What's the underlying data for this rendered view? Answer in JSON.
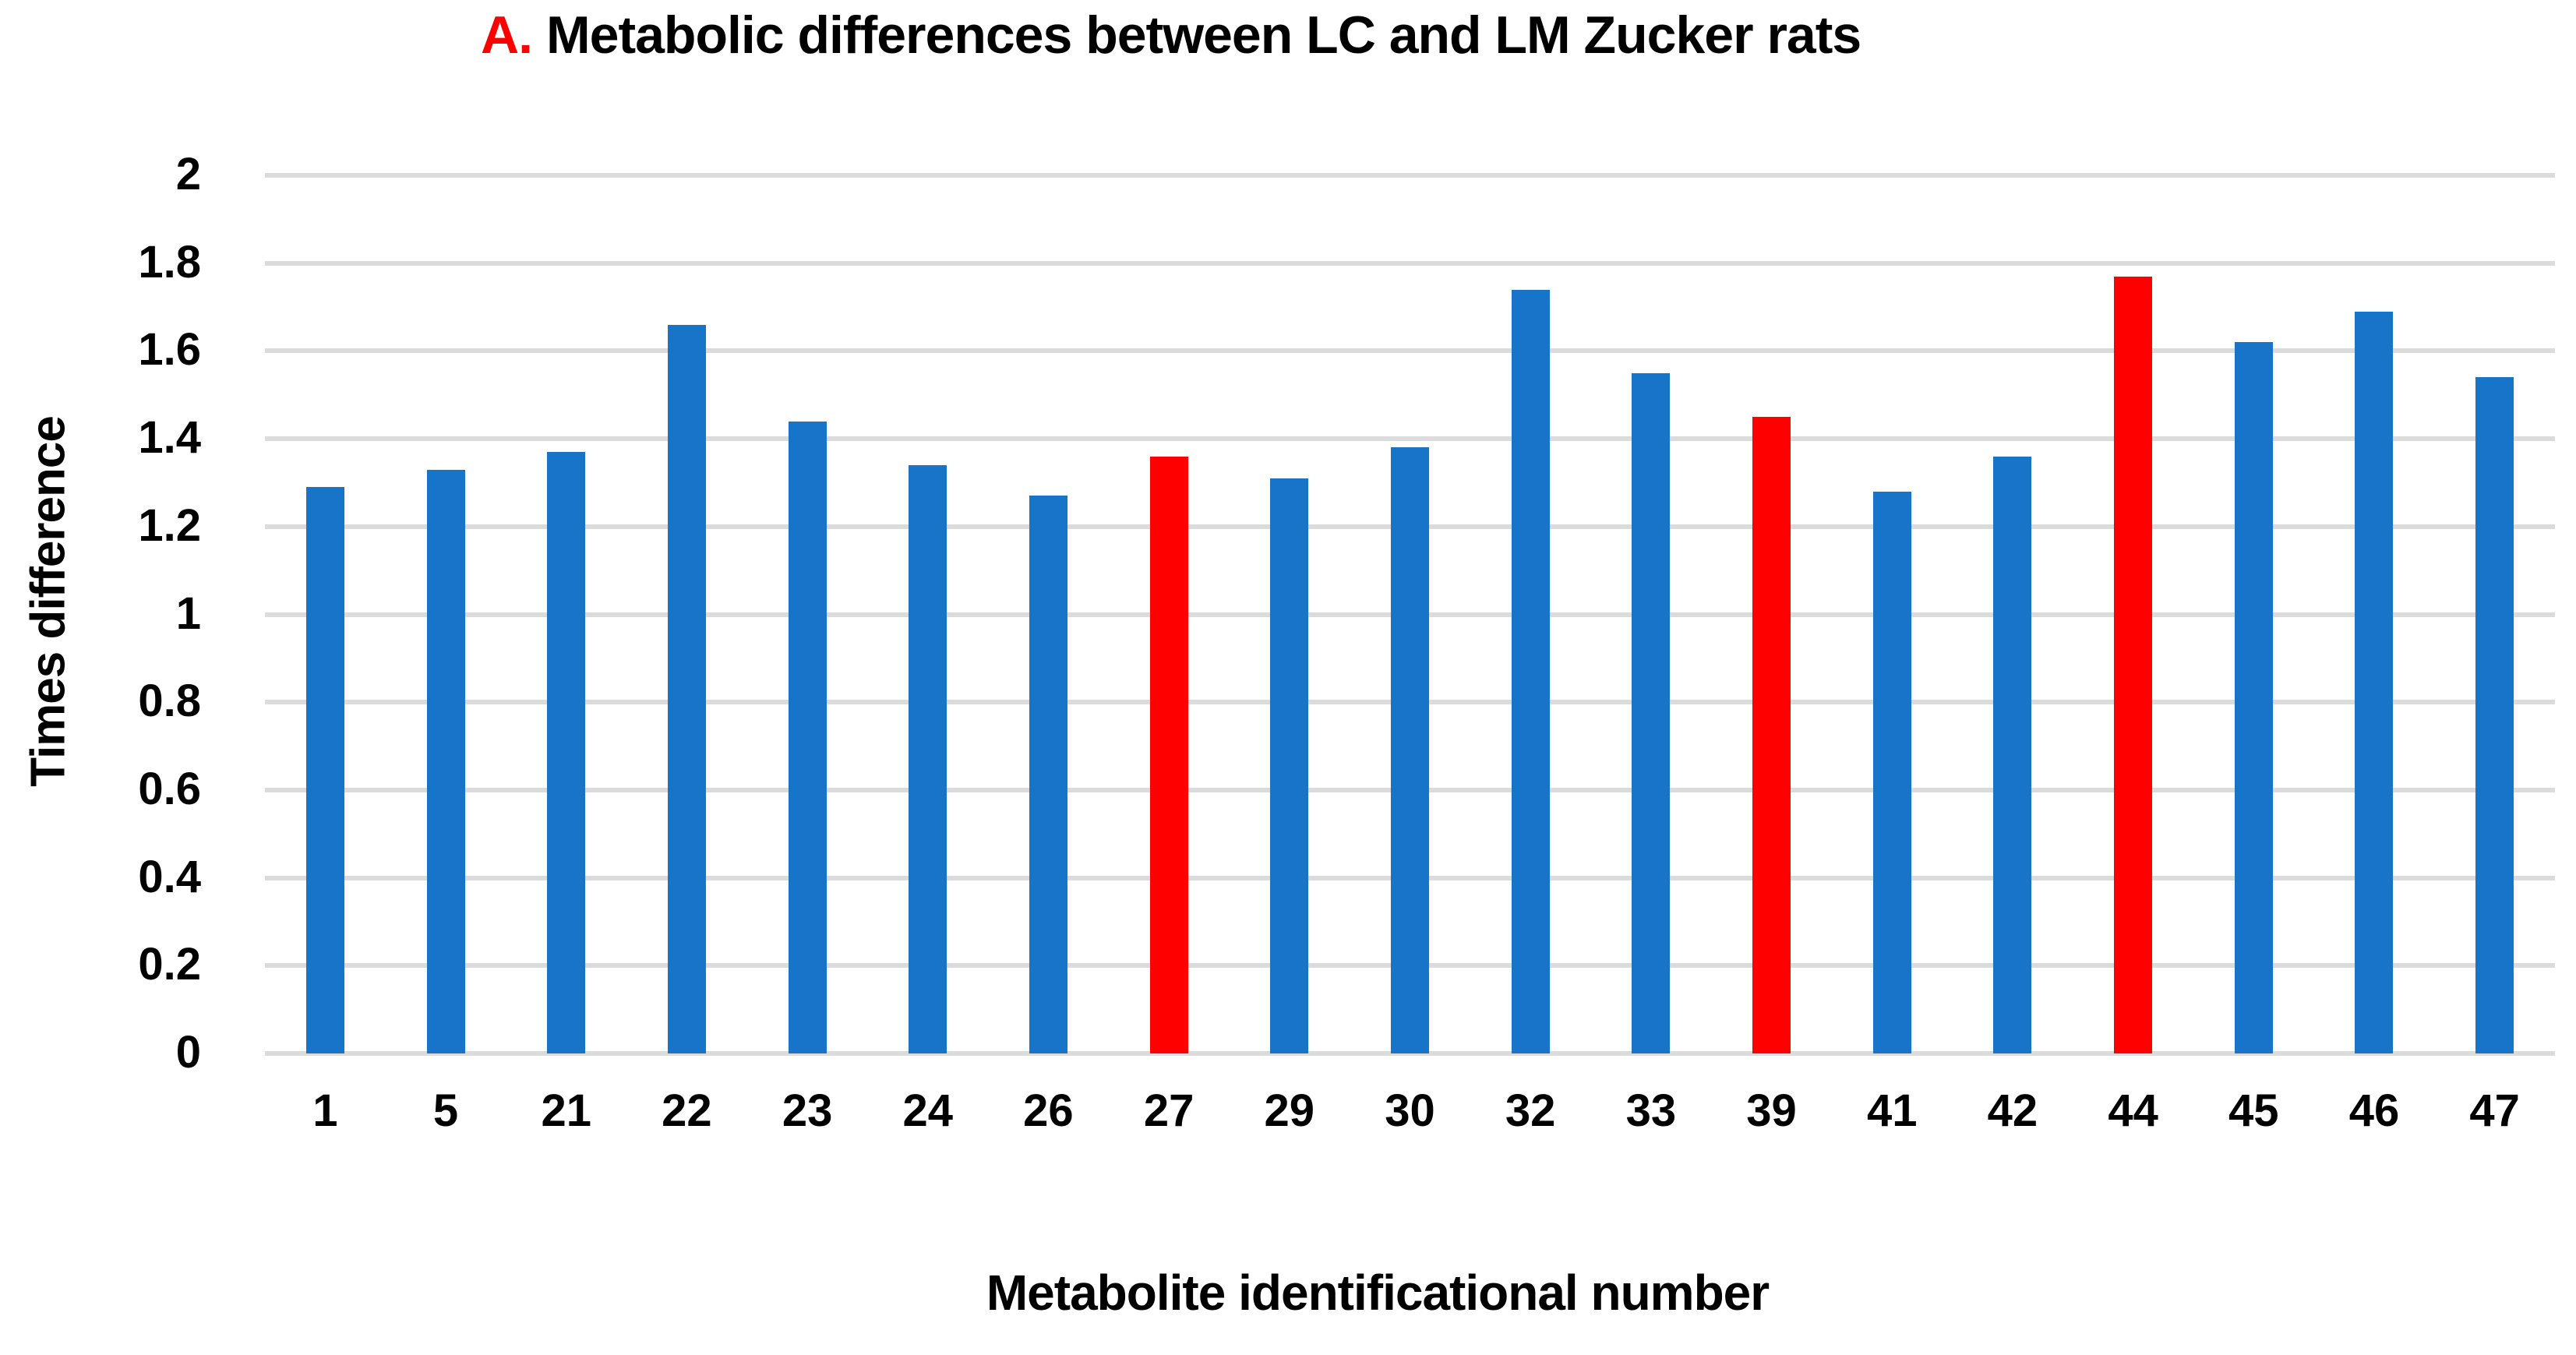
{
  "chart_data": {
    "type": "bar",
    "title_prefix": "A.",
    "title": "Metabolic differences between LC and LM Zucker rats",
    "xlabel": "Metabolite identificational number",
    "ylabel": "Times difference",
    "categories": [
      "1",
      "5",
      "21",
      "22",
      "23",
      "24",
      "26",
      "27",
      "29",
      "30",
      "32",
      "33",
      "39",
      "41",
      "42",
      "44",
      "45",
      "46",
      "47"
    ],
    "values": [
      1.29,
      1.33,
      1.37,
      1.66,
      1.44,
      1.34,
      1.27,
      1.36,
      1.31,
      1.38,
      1.74,
      1.55,
      1.45,
      1.28,
      1.36,
      1.77,
      1.62,
      1.69,
      1.54
    ],
    "highlighted_categories": [
      "27",
      "39",
      "44"
    ],
    "ylim": [
      0,
      2
    ],
    "ytick_step": 0.2,
    "ytick_labels": [
      "0",
      "0.2",
      "0.4",
      "0.6",
      "0.8",
      "1",
      "1.2",
      "1.4",
      "1.6",
      "1.8",
      "2"
    ],
    "grid": true,
    "legend": "none",
    "colors": {
      "bar": "#1874C8",
      "highlight": "#FF0000",
      "gridline": "#DBDBDB",
      "title_prefix": "#FF0000",
      "text": "#000000",
      "background": "#FFFFFF"
    }
  }
}
